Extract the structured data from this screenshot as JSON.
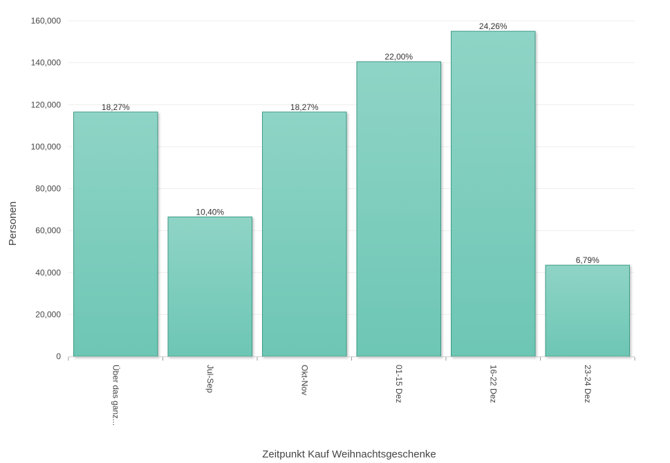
{
  "chart_data": {
    "type": "bar",
    "title": "",
    "xlabel": "Zeitpunkt Kauf Weihnachtsgeschenke",
    "ylabel": "Personen",
    "categories": [
      "Über das ganz...",
      "Jul-Sep",
      "Okt-Nov",
      "01-15 Dez",
      "16-22 Dez",
      "23-24 Dez"
    ],
    "values": [
      116500,
      66500,
      116500,
      140500,
      155000,
      43500
    ],
    "data_labels": [
      "18,27%",
      "10,40%",
      "18,27%",
      "22,00%",
      "24,26%",
      "6,79%"
    ],
    "ylim": [
      0,
      160000
    ],
    "yticks": [
      0,
      20000,
      40000,
      60000,
      80000,
      100000,
      120000,
      140000,
      160000
    ],
    "ytick_labels": [
      "0",
      "20,000",
      "40,000",
      "60,000",
      "80,000",
      "100,000",
      "120,000",
      "140,000",
      "160,000"
    ],
    "grid": true,
    "legend": "none",
    "colors": {
      "bar_top": "#8fd4c6",
      "bar_bottom": "#6dc6b4",
      "bar_stroke": "#3f9b88",
      "grid": "#eeeeee",
      "axis": "#cccccc"
    }
  }
}
